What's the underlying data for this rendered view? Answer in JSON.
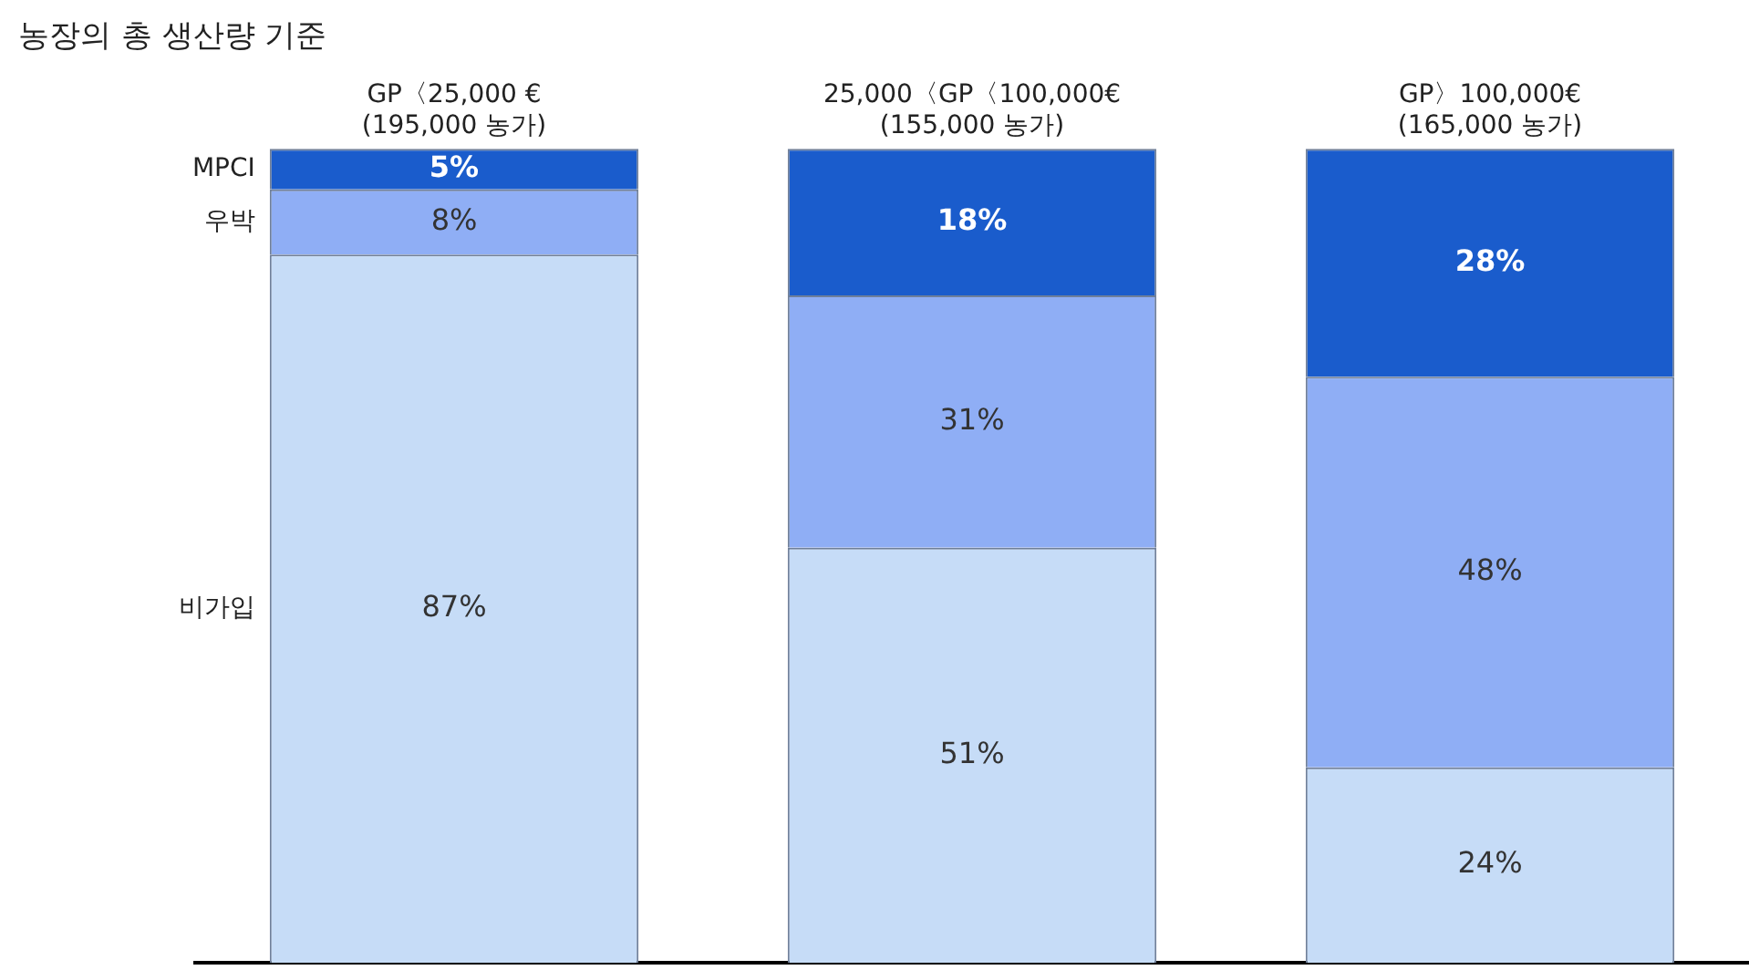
{
  "chart_data": {
    "type": "bar",
    "title": "농장의 총 생산량 기준",
    "stacked": true,
    "grid": false,
    "legend": false,
    "categories": [
      "GP〈25,000 €\n(195,000 농가)",
      "25,000〈GP〈100,000€\n(155,000 농가)",
      "GP〉100,000€\n(165,000 농가)"
    ],
    "series": [
      {
        "name": "비가입",
        "color": "#c6dcf7",
        "values": [
          87,
          51,
          24
        ],
        "value_labels": [
          "87%",
          "51%",
          "24%"
        ]
      },
      {
        "name": "우박",
        "color": "#8faef5",
        "values": [
          8,
          31,
          48
        ],
        "value_labels": [
          "8%",
          "31%",
          "48%"
        ]
      },
      {
        "name": "MPCI",
        "color": "#1a5ccc",
        "values": [
          5,
          18,
          28
        ],
        "value_labels": [
          "5%",
          "18%",
          "28%"
        ]
      }
    ]
  }
}
